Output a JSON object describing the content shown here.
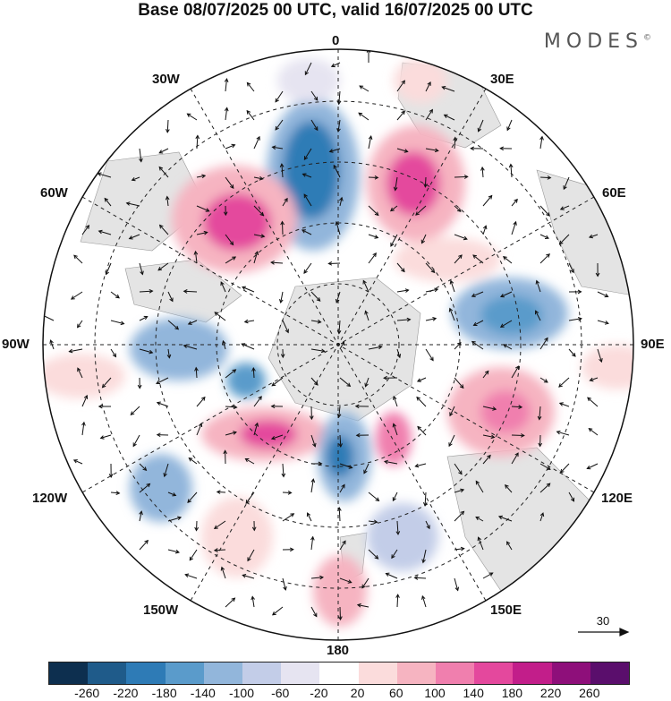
{
  "title": "Base 08/07/2025 00 UTC, valid 16/07/2025 00 UTC",
  "brand": "MODES",
  "brand_mark": "©",
  "longitude_labels": {
    "top": "0",
    "bottom": "180",
    "left": "90W",
    "right": "90E",
    "w30": "30W",
    "e30": "30E",
    "w60": "60W",
    "e60": "60E",
    "w120": "120W",
    "e120": "120E",
    "w150": "150W",
    "e150": "150E"
  },
  "reference_vector": "30",
  "colorbar": {
    "colors": [
      "#0d2f4f",
      "#1f5b8a",
      "#2e7bb6",
      "#5a9bcb",
      "#92b6db",
      "#c3cde8",
      "#e6e4f1",
      "#ffffff",
      "#fbdcdc",
      "#f6b4c1",
      "#f07fae",
      "#e4489d",
      "#c21e8a",
      "#8e0f7a",
      "#5a0e6c"
    ],
    "ticks": [
      "-260",
      "-220",
      "-180",
      "-140",
      "-100",
      "-60",
      "-20",
      "20",
      "60",
      "100",
      "140",
      "180",
      "220",
      "260"
    ]
  }
}
